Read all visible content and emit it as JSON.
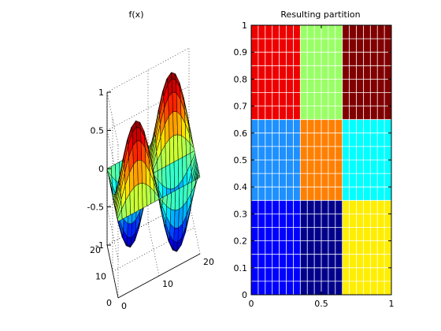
{
  "chart_data": [
    {
      "type": "surface",
      "title": "f(x)",
      "x": {
        "ticks": [
          0,
          10,
          20
        ],
        "range": [
          0,
          20
        ]
      },
      "y": {
        "ticks": [
          0,
          10,
          20
        ],
        "range": [
          0,
          20
        ]
      },
      "z": {
        "ticks": [
          -1,
          -0.5,
          0,
          0.5,
          1
        ],
        "tick_labels": [
          "-1",
          "-0.5",
          "0",
          "0.5",
          "1"
        ],
        "range": [
          -1,
          1
        ]
      },
      "function": "sin(pi*x/10) * sin(pi*y/10)",
      "grid": "dotted",
      "colormap": "jet",
      "mesh": "21x21"
    },
    {
      "type": "heatmap",
      "title": "Resulting partition",
      "x": {
        "ticks": [
          0,
          0.5,
          1
        ],
        "tick_labels": [
          "0",
          "0.5",
          "1"
        ],
        "range": [
          0,
          1
        ]
      },
      "y": {
        "ticks": [
          0,
          0.1,
          0.2,
          0.3,
          0.4,
          0.5,
          0.6,
          0.7,
          0.8,
          0.9,
          1
        ],
        "tick_labels": [
          "0",
          "0.1",
          "0.2",
          "0.3",
          "0.4",
          "0.5",
          "0.6",
          "0.7",
          "0.8",
          "0.9",
          "1"
        ],
        "range": [
          0,
          1
        ]
      },
      "grid_cells": 20,
      "regions": [
        {
          "x": [
            0,
            0.35
          ],
          "y": [
            0,
            0.35
          ],
          "color": "#0000ff"
        },
        {
          "x": [
            0.35,
            0.65
          ],
          "y": [
            0,
            0.35
          ],
          "color": "#00008b"
        },
        {
          "x": [
            0.65,
            1
          ],
          "y": [
            0,
            0.35
          ],
          "color": "#ffee00"
        },
        {
          "x": [
            0,
            0.35
          ],
          "y": [
            0.35,
            0.65
          ],
          "color": "#1e90ff"
        },
        {
          "x": [
            0.35,
            0.65
          ],
          "y": [
            0.35,
            0.65
          ],
          "color": "#ff7f00"
        },
        {
          "x": [
            0.65,
            1
          ],
          "y": [
            0.35,
            0.65
          ],
          "color": "#00ffff"
        },
        {
          "x": [
            0,
            0.35
          ],
          "y": [
            0.65,
            1
          ],
          "color": "#ee0000"
        },
        {
          "x": [
            0.35,
            0.65
          ],
          "y": [
            0.65,
            1
          ],
          "color": "#99ff66"
        },
        {
          "x": [
            0.65,
            1
          ],
          "y": [
            0.65,
            1
          ],
          "color": "#800000"
        }
      ]
    }
  ]
}
